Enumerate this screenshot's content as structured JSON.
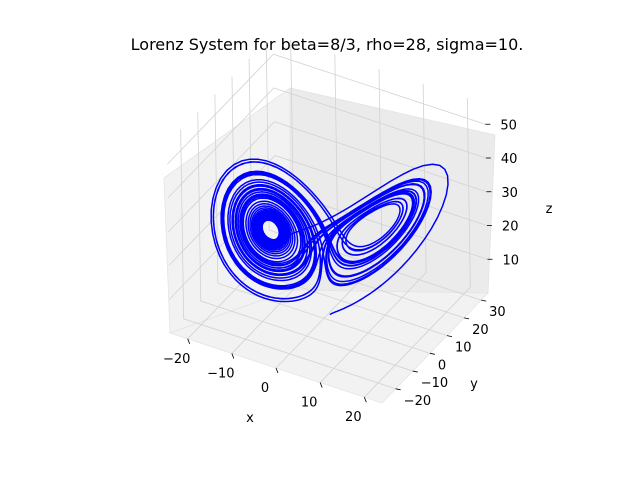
{
  "chart_data": {
    "type": "line",
    "projection": "3d",
    "title": "Lorenz System for beta=8/3, rho=28, sigma=10.",
    "xlabel": "x",
    "ylabel": "y",
    "zlabel": "z",
    "xlim": [
      -24,
      24
    ],
    "ylim": [
      -28,
      34
    ],
    "zlim": [
      0,
      56
    ],
    "xticks": [
      "−20",
      "−10",
      "0",
      "10",
      "20"
    ],
    "yticks": [
      "−20",
      "−10",
      "0",
      "10",
      "20",
      "30"
    ],
    "zticks": [
      "10",
      "20",
      "30",
      "40",
      "50"
    ],
    "grid": true,
    "series": [
      {
        "color": "#0000ff",
        "initial_state": [
          1.0,
          1.0,
          1.0
        ],
        "x": [
          1.0,
          2.2,
          6.5,
          14.5,
          16.4,
          6.6,
          0.6,
          -1.9,
          -6.0,
          -13.5,
          -13.0,
          -7.9,
          -9.4,
          -12.0,
          -8.4,
          -9.2,
          -11.9,
          -7.7,
          -9.0,
          -12.9,
          -7.0,
          -6.1,
          -5.5,
          3.3,
          9.9,
          9.0,
          10.5,
          7.5,
          7.5,
          11.4,
          10.2,
          6.5,
          11.0,
          10.5,
          6.9,
          10.3
        ],
        "y": [
          1.0,
          6.3,
          18.0,
          16.1,
          -0.6,
          -7.5,
          -2.2,
          -5.3,
          -13.5,
          -12.5,
          -5.5,
          -8.6,
          -12.9,
          -8.1,
          -8.8,
          -12.1,
          -7.9,
          -9.6,
          -13.6,
          -7.7,
          -4.1,
          -7.8,
          4.3,
          14.3,
          7.6,
          10.2,
          11.8,
          5.2,
          11.1,
          12.1,
          6.9,
          8.2,
          13.2,
          8.2,
          7.2,
          14.6
        ],
        "z": [
          1.0,
          2.2,
          15.6,
          38.5,
          34.7,
          25.0,
          21.1,
          14.9,
          29.5,
          36.0,
          27.6,
          24.6,
          28.7,
          30.1,
          24.0,
          29.0,
          28.0,
          24.0,
          29.4,
          35.8,
          24.1,
          16.6,
          19.6,
          25.1,
          31.0,
          24.6,
          29.9,
          27.3,
          25.7,
          30.4,
          26.8,
          25.0,
          30.1,
          27.8,
          24.2,
          31.4
        ]
      }
    ]
  }
}
